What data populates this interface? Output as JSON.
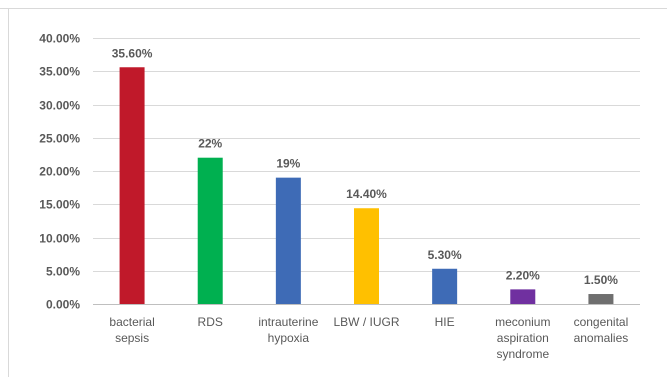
{
  "chart_data": {
    "type": "bar",
    "title": "",
    "categories": [
      [
        "bacterial",
        "sepsis"
      ],
      [
        "RDS"
      ],
      [
        "intrauterine",
        "hypoxia"
      ],
      [
        "LBW / IUGR"
      ],
      [
        "HIE"
      ],
      [
        "meconium",
        "aspiration",
        "syndrome"
      ],
      [
        "congenital",
        "anomalies"
      ]
    ],
    "values": [
      35.6,
      22,
      19,
      14.4,
      5.3,
      2.2,
      1.5
    ],
    "data_labels": [
      "35.60%",
      "22%",
      "19%",
      "14.40%",
      "5.30%",
      "2.20%",
      "1.50%"
    ],
    "colors": [
      "#c0192a",
      "#00b050",
      "#3e6bb6",
      "#ffc000",
      "#3e6bb6",
      "#7030a0",
      "#6f6f6f"
    ],
    "ylim": [
      0,
      40
    ],
    "yticks": [
      "0.00%",
      "5.00%",
      "10.00%",
      "15.00%",
      "20.00%",
      "25.00%",
      "30.00%",
      "35.00%",
      "40.00%"
    ],
    "grid": true,
    "xlabel": "",
    "ylabel": ""
  }
}
